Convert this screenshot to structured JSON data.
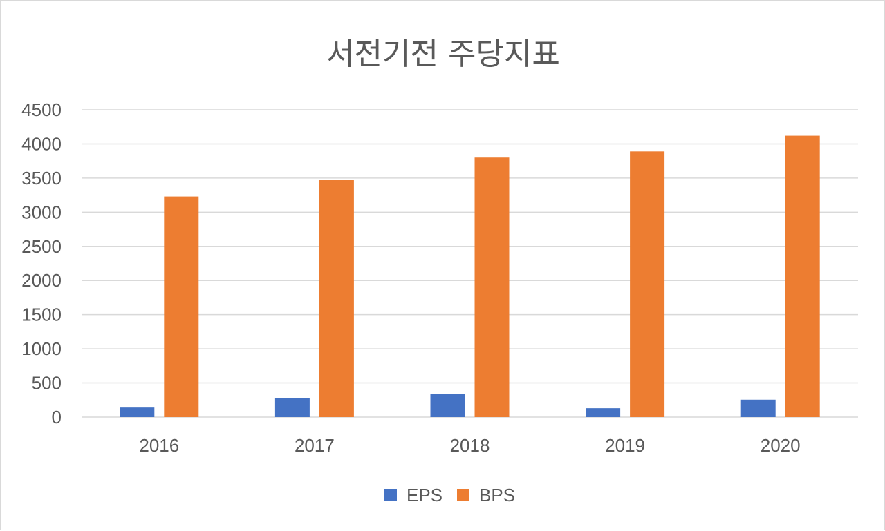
{
  "chart_data": {
    "type": "bar",
    "title": "서전기전 주당지표",
    "categories": [
      "2016",
      "2017",
      "2018",
      "2019",
      "2020"
    ],
    "series": [
      {
        "name": "EPS",
        "values": [
          140,
          280,
          340,
          130,
          255
        ],
        "color": "#4472C4"
      },
      {
        "name": "BPS",
        "values": [
          3230,
          3470,
          3800,
          3890,
          4120
        ],
        "color": "#ED7D31"
      }
    ],
    "ylim": [
      0,
      4500
    ],
    "yticks": [
      "0",
      "500",
      "1000",
      "1500",
      "2000",
      "2500",
      "3000",
      "3500",
      "4000",
      "4500"
    ],
    "grid": true,
    "legend_position": "bottom",
    "xlabel": "",
    "ylabel": ""
  }
}
